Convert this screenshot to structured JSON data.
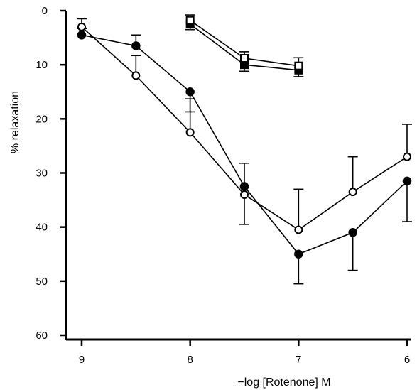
{
  "chart_data": {
    "type": "line",
    "xlabel": "−log [Rotenone] M",
    "ylabel": "% relaxation",
    "x_reversed": true,
    "y_inverted": true,
    "xlim": [
      9,
      6
    ],
    "ylim": [
      0,
      60
    ],
    "x_ticks": [
      9,
      8,
      7,
      6
    ],
    "y_ticks": [
      0,
      10,
      20,
      30,
      40,
      50,
      60
    ],
    "series": [
      {
        "marker": "filled-circle",
        "x": [
          9,
          8.5,
          8,
          7.5,
          7,
          6.5,
          6
        ],
        "y": [
          4.5,
          6.5,
          15,
          32.5,
          45,
          41,
          31.5
        ],
        "err": [
          1.2,
          2.0,
          3.7,
          7.0,
          5.5,
          7.0,
          7.5
        ]
      },
      {
        "marker": "open-circle",
        "x": [
          9,
          8.5,
          8,
          7.5,
          7,
          6.5,
          6
        ],
        "y": [
          3,
          12,
          22.5,
          34,
          40.5,
          33.5,
          27
        ],
        "err": [
          1.5,
          3.7,
          6.2,
          5.8,
          7.5,
          6.5,
          6.0
        ]
      },
      {
        "marker": "filled-square",
        "x": [
          8,
          7.5,
          7
        ],
        "y": [
          2.5,
          10,
          11
        ],
        "err": [
          1.0,
          1.2,
          1.2
        ]
      },
      {
        "marker": "open-square",
        "x": [
          8,
          7.5,
          7
        ],
        "y": [
          1.8,
          8.8,
          10.2
        ],
        "err": [
          1.0,
          1.2,
          1.5
        ]
      }
    ]
  }
}
